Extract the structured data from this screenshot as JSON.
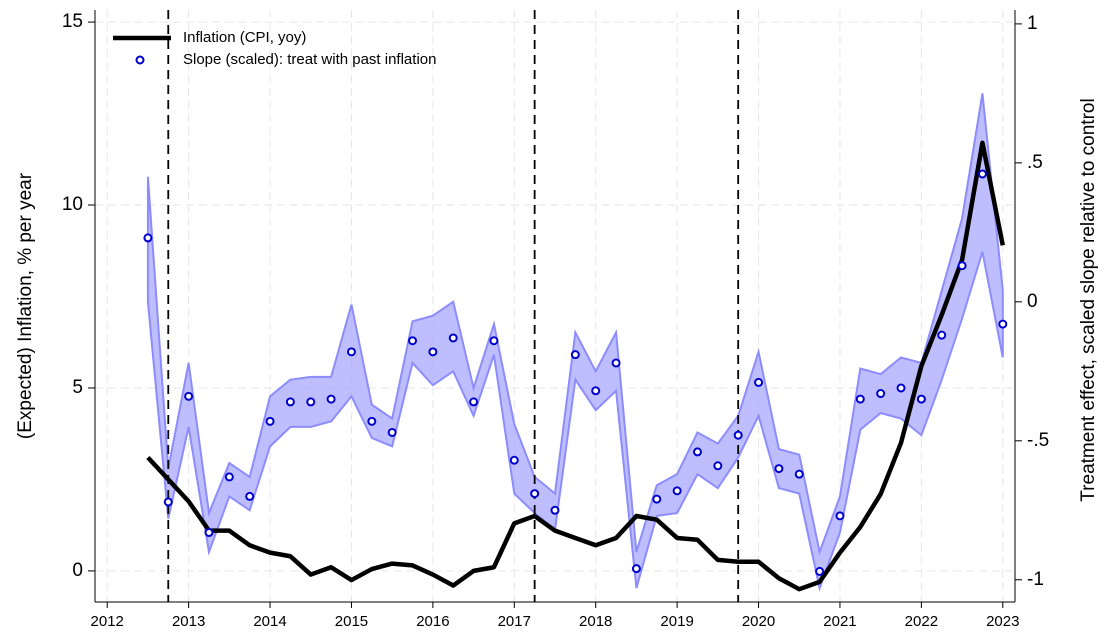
{
  "chart_data": {
    "type": "line",
    "ylabel": "(Expected) Inflation, % per year",
    "y2label": "Treatment effect, scaled slope relative to control",
    "x": [
      2012.5,
      2012.75,
      2013,
      2013.25,
      2013.5,
      2013.75,
      2014,
      2014.25,
      2014.5,
      2014.75,
      2015,
      2015.25,
      2015.5,
      2015.75,
      2016,
      2016.25,
      2016.5,
      2016.75,
      2017,
      2017.25,
      2017.5,
      2017.75,
      2018,
      2018.25,
      2018.5,
      2018.75,
      2019,
      2019.25,
      2019.5,
      2019.75,
      2020,
      2020.25,
      2020.5,
      2020.75,
      2021,
      2021.25,
      2021.5,
      2021.75,
      2022,
      2022.25,
      2022.5,
      2022.75,
      2023
    ],
    "series": [
      {
        "name": "Inflation (CPI, yoy)",
        "color": "#000000",
        "axis": "y",
        "values": [
          3.1,
          2.5,
          1.9,
          1.1,
          1.1,
          0.7,
          0.5,
          0.4,
          -0.1,
          0.1,
          -0.25,
          0.05,
          0.2,
          0.15,
          -0.1,
          -0.4,
          0.0,
          0.1,
          1.3,
          1.5,
          1.1,
          0.9,
          0.7,
          0.9,
          1.5,
          1.4,
          0.9,
          0.85,
          0.3,
          0.25,
          0.25,
          -0.2,
          -0.5,
          -0.3,
          0.5,
          1.2,
          2.1,
          3.5,
          5.6,
          7.0,
          8.5,
          11.7,
          8.9
        ]
      },
      {
        "name": "Slope (scaled): treat with past inflation",
        "color": "#0000cc",
        "axis": "y2",
        "band_color": "#a8a8ff",
        "values": [
          0.23,
          -0.72,
          -0.34,
          -0.83,
          -0.63,
          -0.7,
          -0.43,
          -0.36,
          -0.36,
          -0.35,
          -0.18,
          -0.43,
          -0.47,
          -0.14,
          -0.18,
          -0.13,
          -0.36,
          -0.14,
          -0.57,
          -0.69,
          -0.75,
          -0.19,
          -0.32,
          -0.22,
          -0.96,
          -0.71,
          -0.68,
          -0.54,
          -0.59,
          -0.48,
          -0.29,
          -0.6,
          -0.62,
          -0.97,
          -0.77,
          -0.35,
          -0.33,
          -0.31,
          -0.35,
          -0.12,
          0.13,
          0.46,
          -0.08
        ],
        "ci_lower": [
          0.0,
          -0.78,
          -0.45,
          -0.9,
          -0.7,
          -0.75,
          -0.52,
          -0.45,
          -0.45,
          -0.43,
          -0.34,
          -0.49,
          -0.52,
          -0.22,
          -0.3,
          -0.25,
          -0.41,
          -0.19,
          -0.69,
          -0.76,
          -0.82,
          -0.28,
          -0.39,
          -0.32,
          -1.03,
          -0.77,
          -0.76,
          -0.62,
          -0.67,
          -0.56,
          -0.41,
          -0.67,
          -0.69,
          -1.03,
          -0.83,
          -0.46,
          -0.4,
          -0.42,
          -0.48,
          -0.28,
          -0.06,
          0.18,
          -0.2
        ],
        "ci_upper": [
          0.45,
          -0.6,
          -0.22,
          -0.76,
          -0.58,
          -0.63,
          -0.34,
          -0.28,
          -0.27,
          -0.27,
          -0.01,
          -0.37,
          -0.42,
          -0.07,
          -0.05,
          0.0,
          -0.31,
          -0.08,
          -0.44,
          -0.63,
          -0.69,
          -0.11,
          -0.25,
          -0.11,
          -0.9,
          -0.66,
          -0.62,
          -0.47,
          -0.51,
          -0.41,
          -0.18,
          -0.53,
          -0.55,
          -0.9,
          -0.7,
          -0.24,
          -0.26,
          -0.2,
          -0.22,
          0.04,
          0.3,
          0.75,
          0.04
        ]
      }
    ],
    "vlines": [
      2012.75,
      2017.25,
      2019.75
    ],
    "xlim": [
      2011.85,
      2023.15
    ],
    "xticks": [
      2012,
      2013,
      2014,
      2015,
      2016,
      2017,
      2018,
      2019,
      2020,
      2021,
      2022,
      2023
    ],
    "ylim": [
      -0.85,
      15.33
    ],
    "yticks": [
      0,
      5,
      10,
      15
    ],
    "y2lim": [
      -1.08,
      1.05
    ],
    "y2ticks": [
      -1,
      {
        "value": -0.5,
        "label": "-.5"
      },
      0,
      {
        "value": 0.5,
        "label": ".5"
      },
      1
    ],
    "grid": true,
    "legend": "top-left"
  }
}
